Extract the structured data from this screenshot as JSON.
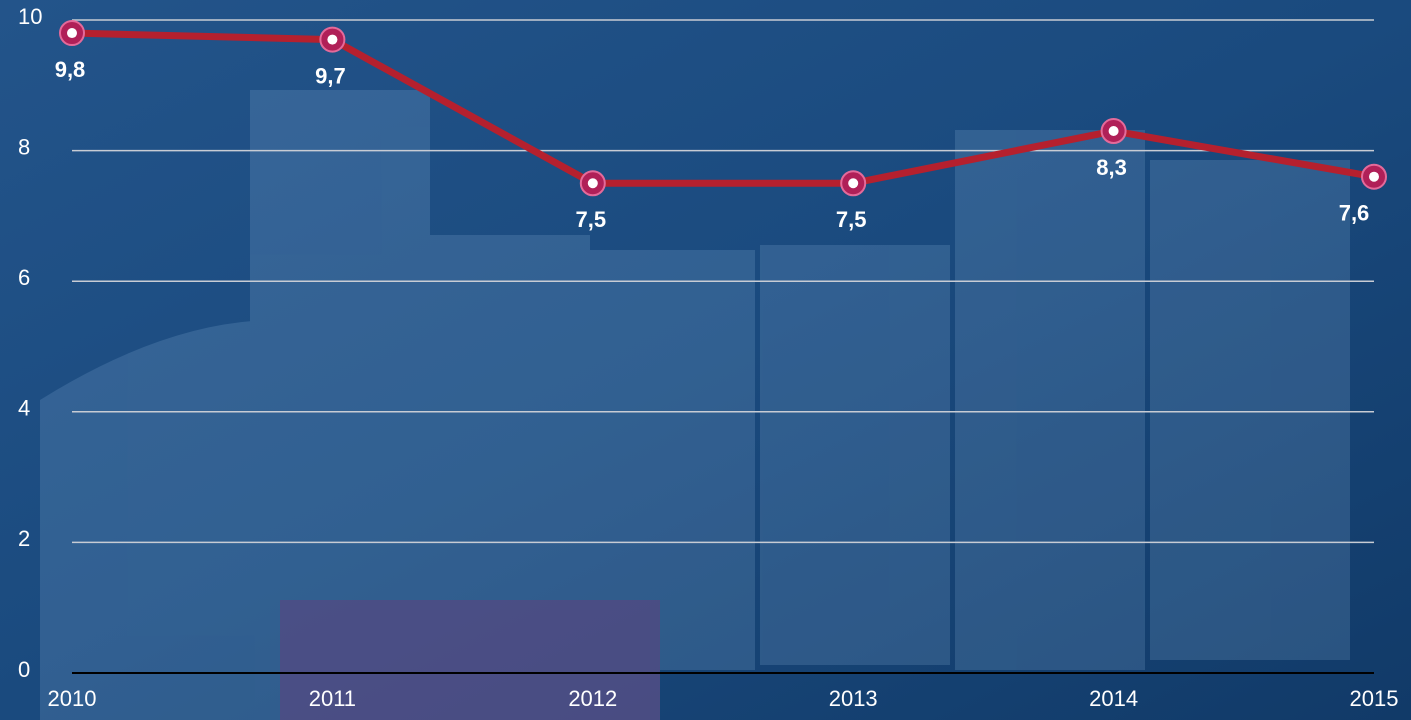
{
  "chart_data": {
    "type": "line",
    "x": [
      2010,
      2011,
      2012,
      2013,
      2014,
      2015
    ],
    "xlim": [
      2010,
      2015
    ],
    "xticks": [
      2010,
      2011,
      2012,
      2013,
      2014,
      2015
    ],
    "series": [
      {
        "color": "#b5202e",
        "values": [
          9.8,
          9.7,
          7.5,
          7.5,
          8.3,
          7.6
        ],
        "value_labels": [
          "9,8",
          "9,7",
          "7,5",
          "7,5",
          "8,3",
          "7,6"
        ]
      }
    ],
    "ylim": [
      0,
      10
    ],
    "yticks": [
      0,
      2,
      4,
      6,
      8,
      10
    ],
    "grid": true
  }
}
